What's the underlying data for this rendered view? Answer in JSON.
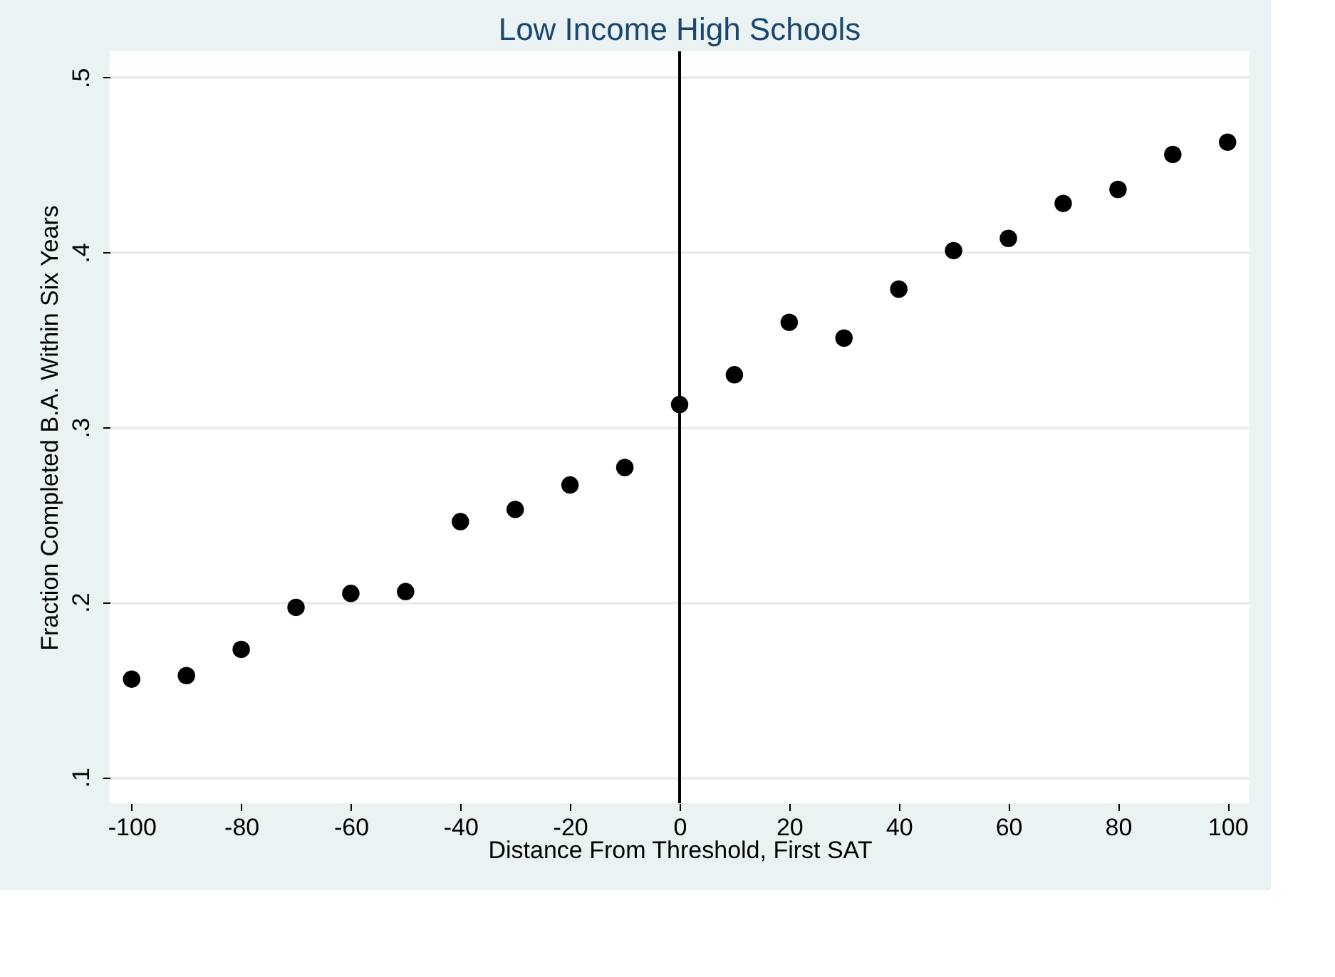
{
  "chart_data": {
    "type": "scatter",
    "title": "Low Income High Schools",
    "xlabel": "Distance From Threshold, First SAT",
    "ylabel": "Fraction Completed B.A. Within Six Years",
    "x": [
      -100,
      -90,
      -80,
      -70,
      -60,
      -50,
      -40,
      -30,
      -20,
      -10,
      0,
      10,
      20,
      30,
      40,
      50,
      60,
      70,
      80,
      90,
      100
    ],
    "series": [
      {
        "color": "#000000",
        "values": [
          0.156,
          0.158,
          0.173,
          0.197,
          0.205,
          0.206,
          0.246,
          0.253,
          0.267,
          0.277,
          0.313,
          0.33,
          0.36,
          0.351,
          0.379,
          0.401,
          0.408,
          0.428,
          0.436,
          0.456,
          0.463
        ]
      }
    ],
    "xlim": [
      -104,
      104
    ],
    "ylim": [
      0.085,
      0.515
    ],
    "xticks": [
      -100,
      -80,
      -60,
      -40,
      -20,
      0,
      20,
      40,
      60,
      80,
      100
    ],
    "yticks": [
      {
        "value": 0.1,
        "label": ".1"
      },
      {
        "value": 0.2,
        "label": ".2"
      },
      {
        "value": 0.3,
        "label": ".3"
      },
      {
        "value": 0.4,
        "label": ".4"
      },
      {
        "value": 0.5,
        "label": ".5"
      }
    ],
    "ref_lines": [
      {
        "axis": "x",
        "value": 0,
        "color": "#000000"
      }
    ],
    "grid": "y",
    "marker": "circle"
  }
}
